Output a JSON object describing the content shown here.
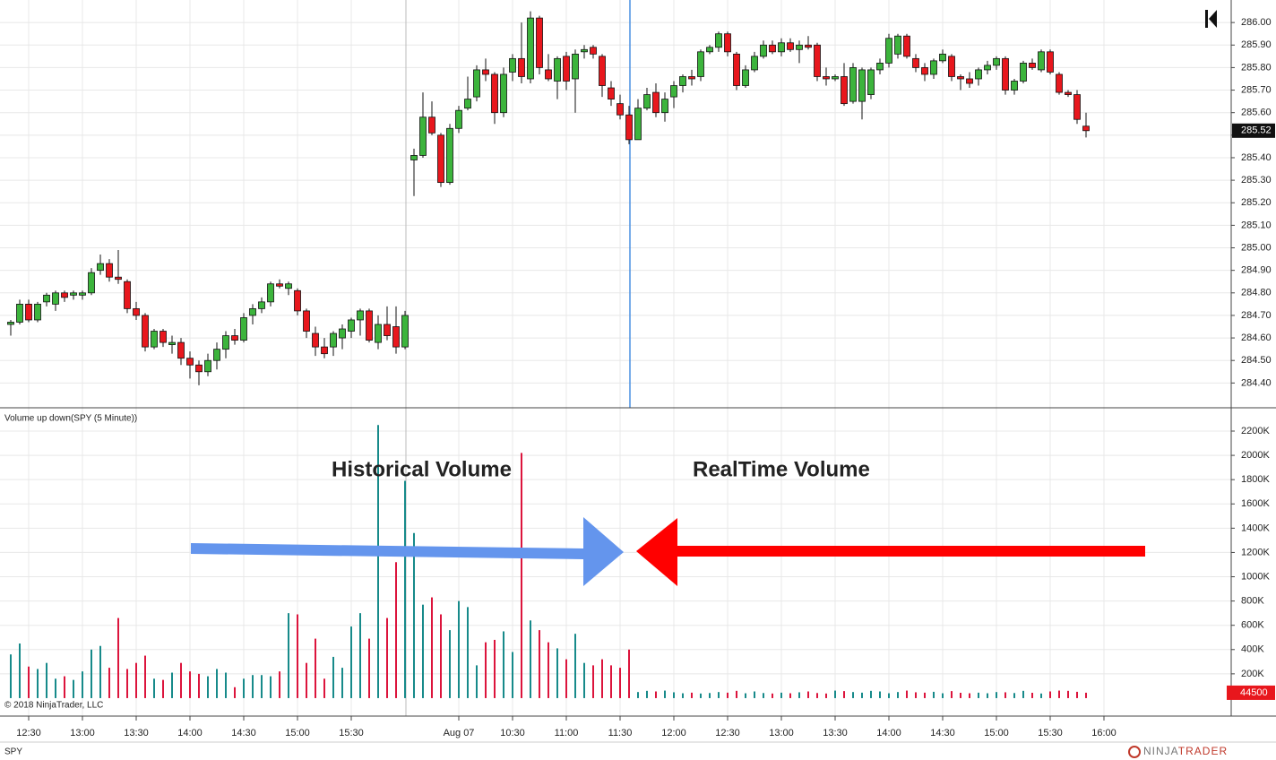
{
  "chart_data": [
    {
      "type": "candlestick",
      "up_color": "#3cb43c",
      "down_color": "#e8171d",
      "xlim": [
        -1.2,
        136.2
      ],
      "ylim": [
        284.29,
        286.1
      ],
      "yticks": [
        {
          "value": 284.4,
          "label": "284.40"
        },
        {
          "value": 284.5,
          "label": "284.50"
        },
        {
          "value": 284.6,
          "label": "284.60"
        },
        {
          "value": 284.7,
          "label": "284.70"
        },
        {
          "value": 284.8,
          "label": "284.80"
        },
        {
          "value": 284.9,
          "label": "284.90"
        },
        {
          "value": 285,
          "label": "285.00"
        },
        {
          "value": 285.1,
          "label": "285.10"
        },
        {
          "value": 285.2,
          "label": "285.20"
        },
        {
          "value": 285.3,
          "label": "285.30"
        },
        {
          "value": 285.4,
          "label": "285.40"
        },
        {
          "value": 285.5,
          "label": "285.50"
        },
        {
          "value": 285.6,
          "label": "285.60"
        },
        {
          "value": 285.7,
          "label": "285.70"
        },
        {
          "value": 285.8,
          "label": "285.80"
        },
        {
          "value": 285.9,
          "label": "285.90"
        },
        {
          "value": 286,
          "label": "286.00"
        }
      ],
      "last_price": 285.52,
      "grid": true,
      "ohlc": [
        [
          284.66,
          284.68,
          284.61,
          284.67
        ],
        [
          284.67,
          284.77,
          284.66,
          284.75
        ],
        [
          284.75,
          284.77,
          284.67,
          284.68
        ],
        [
          284.68,
          284.76,
          284.67,
          284.75
        ],
        [
          284.76,
          284.8,
          284.74,
          284.79
        ],
        [
          284.75,
          284.81,
          284.72,
          284.8
        ],
        [
          284.8,
          284.81,
          284.76,
          284.78
        ],
        [
          284.79,
          284.81,
          284.77,
          284.8
        ],
        [
          284.79,
          284.81,
          284.77,
          284.8
        ],
        [
          284.8,
          284.91,
          284.79,
          284.89
        ],
        [
          284.9,
          284.97,
          284.88,
          284.93
        ],
        [
          284.93,
          284.95,
          284.85,
          284.87
        ],
        [
          284.87,
          284.99,
          284.84,
          284.86
        ],
        [
          284.85,
          284.86,
          284.71,
          284.73
        ],
        [
          284.73,
          284.76,
          284.68,
          284.7
        ],
        [
          284.7,
          284.71,
          284.54,
          284.56
        ],
        [
          284.56,
          284.64,
          284.55,
          284.63
        ],
        [
          284.63,
          284.64,
          284.56,
          284.58
        ],
        [
          284.57,
          284.61,
          284.53,
          284.58
        ],
        [
          284.58,
          284.6,
          284.48,
          284.51
        ],
        [
          284.51,
          284.54,
          284.42,
          284.48
        ],
        [
          284.48,
          284.5,
          284.39,
          284.45
        ],
        [
          284.45,
          284.53,
          284.43,
          284.5
        ],
        [
          284.5,
          284.58,
          284.46,
          284.55
        ],
        [
          284.55,
          284.63,
          284.51,
          284.61
        ],
        [
          284.61,
          284.64,
          284.57,
          284.59
        ],
        [
          284.59,
          284.71,
          284.58,
          284.69
        ],
        [
          284.7,
          284.75,
          284.66,
          284.73
        ],
        [
          284.73,
          284.78,
          284.71,
          284.76
        ],
        [
          284.76,
          284.85,
          284.74,
          284.84
        ],
        [
          284.84,
          284.86,
          284.82,
          284.83
        ],
        [
          284.82,
          284.85,
          284.79,
          284.84
        ],
        [
          284.81,
          284.82,
          284.7,
          284.72
        ],
        [
          284.72,
          284.73,
          284.6,
          284.63
        ],
        [
          284.62,
          284.65,
          284.52,
          284.56
        ],
        [
          284.56,
          284.6,
          284.51,
          284.53
        ],
        [
          284.56,
          284.63,
          284.52,
          284.62
        ],
        [
          284.6,
          284.66,
          284.55,
          284.64
        ],
        [
          284.63,
          284.69,
          284.6,
          284.68
        ],
        [
          284.68,
          284.73,
          284.61,
          284.72
        ],
        [
          284.72,
          284.73,
          284.58,
          284.59
        ],
        [
          284.58,
          284.7,
          284.55,
          284.66
        ],
        [
          284.66,
          284.74,
          284.59,
          284.61
        ],
        [
          284.65,
          284.74,
          284.53,
          284.56
        ],
        [
          284.56,
          284.72,
          284.55,
          284.7
        ],
        [
          285.39,
          285.44,
          285.23,
          285.41
        ],
        [
          285.41,
          285.69,
          285.4,
          285.58
        ],
        [
          285.58,
          285.65,
          285.5,
          285.51
        ],
        [
          285.5,
          285.51,
          285.27,
          285.29
        ],
        [
          285.29,
          285.55,
          285.28,
          285.53
        ],
        [
          285.53,
          285.63,
          285.51,
          285.61
        ],
        [
          285.62,
          285.76,
          285.61,
          285.66
        ],
        [
          285.67,
          285.81,
          285.65,
          285.79
        ],
        [
          285.79,
          285.84,
          285.74,
          285.77
        ],
        [
          285.77,
          285.78,
          285.55,
          285.6
        ],
        [
          285.6,
          285.8,
          285.58,
          285.77
        ],
        [
          285.78,
          285.86,
          285.74,
          285.84
        ],
        [
          285.84,
          286.0,
          285.73,
          285.76
        ],
        [
          285.75,
          286.05,
          285.73,
          286.02
        ],
        [
          286.02,
          286.03,
          285.77,
          285.8
        ],
        [
          285.79,
          285.86,
          285.74,
          285.75
        ],
        [
          285.74,
          285.85,
          285.66,
          285.84
        ],
        [
          285.85,
          285.87,
          285.7,
          285.74
        ],
        [
          285.75,
          285.88,
          285.6,
          285.86
        ],
        [
          285.87,
          285.9,
          285.84,
          285.88
        ],
        [
          285.89,
          285.9,
          285.84,
          285.86
        ],
        [
          285.85,
          285.86,
          285.67,
          285.72
        ],
        [
          285.71,
          285.74,
          285.63,
          285.66
        ],
        [
          285.64,
          285.68,
          285.57,
          285.59
        ],
        [
          285.59,
          285.63,
          285.46,
          285.48
        ],
        [
          285.48,
          285.66,
          285.48,
          285.62
        ],
        [
          285.62,
          285.71,
          285.61,
          285.68
        ],
        [
          285.69,
          285.73,
          285.58,
          285.6
        ],
        [
          285.6,
          285.69,
          285.56,
          285.66
        ],
        [
          285.67,
          285.74,
          285.62,
          285.72
        ],
        [
          285.72,
          285.77,
          285.69,
          285.76
        ],
        [
          285.76,
          285.79,
          285.72,
          285.75
        ],
        [
          285.76,
          285.88,
          285.74,
          285.87
        ],
        [
          285.87,
          285.9,
          285.86,
          285.89
        ],
        [
          285.89,
          285.96,
          285.87,
          285.95
        ],
        [
          285.95,
          285.96,
          285.85,
          285.87
        ],
        [
          285.86,
          285.87,
          285.7,
          285.72
        ],
        [
          285.72,
          285.81,
          285.71,
          285.79
        ],
        [
          285.79,
          285.87,
          285.78,
          285.85
        ],
        [
          285.85,
          285.92,
          285.84,
          285.9
        ],
        [
          285.9,
          285.92,
          285.86,
          285.87
        ],
        [
          285.87,
          285.93,
          285.85,
          285.91
        ],
        [
          285.91,
          285.93,
          285.87,
          285.88
        ],
        [
          285.88,
          285.92,
          285.82,
          285.9
        ],
        [
          285.9,
          285.94,
          285.88,
          285.89
        ],
        [
          285.9,
          285.91,
          285.74,
          285.76
        ],
        [
          285.76,
          285.8,
          285.72,
          285.75
        ],
        [
          285.75,
          285.77,
          285.74,
          285.76
        ],
        [
          285.76,
          285.82,
          285.63,
          285.64
        ],
        [
          285.65,
          285.82,
          285.64,
          285.8
        ],
        [
          285.65,
          285.8,
          285.57,
          285.79
        ],
        [
          285.68,
          285.8,
          285.66,
          285.79
        ],
        [
          285.79,
          285.84,
          285.77,
          285.82
        ],
        [
          285.82,
          285.95,
          285.8,
          285.93
        ],
        [
          285.86,
          285.95,
          285.84,
          285.94
        ],
        [
          285.94,
          285.95,
          285.84,
          285.85
        ],
        [
          285.84,
          285.86,
          285.78,
          285.8
        ],
        [
          285.8,
          285.82,
          285.74,
          285.77
        ],
        [
          285.77,
          285.84,
          285.75,
          285.83
        ],
        [
          285.83,
          285.88,
          285.82,
          285.86
        ],
        [
          285.85,
          285.86,
          285.74,
          285.76
        ],
        [
          285.76,
          285.77,
          285.7,
          285.75
        ],
        [
          285.75,
          285.78,
          285.71,
          285.73
        ],
        [
          285.75,
          285.8,
          285.72,
          285.79
        ],
        [
          285.79,
          285.83,
          285.77,
          285.81
        ],
        [
          285.81,
          285.85,
          285.79,
          285.84
        ],
        [
          285.84,
          285.85,
          285.68,
          285.7
        ],
        [
          285.7,
          285.75,
          285.68,
          285.74
        ],
        [
          285.74,
          285.83,
          285.73,
          285.82
        ],
        [
          285.82,
          285.84,
          285.79,
          285.8
        ],
        [
          285.79,
          285.88,
          285.78,
          285.87
        ],
        [
          285.87,
          285.88,
          285.77,
          285.78
        ],
        [
          285.77,
          285.78,
          285.68,
          285.69
        ],
        [
          285.69,
          285.7,
          285.67,
          285.68
        ],
        [
          285.68,
          285.7,
          285.55,
          285.57
        ],
        [
          285.54,
          285.6,
          285.49,
          285.52
        ]
      ]
    },
    {
      "type": "bar",
      "title": "Volume up down(SPY (5 Minute))",
      "up_color": "#178a8a",
      "down_color": "#dc143c",
      "xlim": [
        -1.2,
        136.2
      ],
      "ylim": [
        -148000,
        2392000
      ],
      "xticks": [
        {
          "value": 2,
          "label": "12:30"
        },
        {
          "value": 8,
          "label": "13:00"
        },
        {
          "value": 14,
          "label": "13:30"
        },
        {
          "value": 20,
          "label": "14:00"
        },
        {
          "value": 26,
          "label": "14:30"
        },
        {
          "value": 32,
          "label": "15:00"
        },
        {
          "value": 38,
          "label": "15:30"
        },
        {
          "value": 50,
          "label": "Aug 07"
        },
        {
          "value": 56,
          "label": "10:30"
        },
        {
          "value": 62,
          "label": "11:00"
        },
        {
          "value": 68,
          "label": "11:30"
        },
        {
          "value": 74,
          "label": "12:00"
        },
        {
          "value": 80,
          "label": "12:30"
        },
        {
          "value": 86,
          "label": "13:00"
        },
        {
          "value": 92,
          "label": "13:30"
        },
        {
          "value": 98,
          "label": "14:00"
        },
        {
          "value": 104,
          "label": "14:30"
        },
        {
          "value": 110,
          "label": "15:00"
        },
        {
          "value": 116,
          "label": "15:30"
        },
        {
          "value": 122,
          "label": "16:00"
        }
      ],
      "yticks": [
        {
          "value": 200000,
          "label": "200K"
        },
        {
          "value": 400000,
          "label": "400K"
        },
        {
          "value": 600000,
          "label": "600K"
        },
        {
          "value": 800000,
          "label": "800K"
        },
        {
          "value": 1000000,
          "label": "1000K"
        },
        {
          "value": 1200000,
          "label": "1200K"
        },
        {
          "value": 1400000,
          "label": "1400K"
        },
        {
          "value": 1600000,
          "label": "1600K"
        },
        {
          "value": 1800000,
          "label": "1800K"
        },
        {
          "value": 2000000,
          "label": "2000K"
        },
        {
          "value": 2200000,
          "label": "2200K"
        }
      ],
      "last_volume": 44500,
      "grid": true,
      "annotations": [
        {
          "text": "Historical Volume",
          "color": "#6495ed"
        },
        {
          "text": "RealTime Volume",
          "color": "#ff0000"
        }
      ],
      "values": [
        360000,
        450000,
        260000,
        240000,
        290000,
        160000,
        180000,
        150000,
        220000,
        400000,
        430000,
        250000,
        660000,
        240000,
        290000,
        350000,
        160000,
        150000,
        210000,
        290000,
        220000,
        200000,
        180000,
        240000,
        210000,
        90000,
        160000,
        190000,
        190000,
        180000,
        220000,
        700000,
        690000,
        290000,
        490000,
        160000,
        340000,
        250000,
        590000,
        700000,
        490000,
        2250000,
        660000,
        1120000,
        1790000,
        1360000,
        770000,
        830000,
        690000,
        560000,
        800000,
        750000,
        270000,
        460000,
        480000,
        550000,
        380000,
        2020000,
        640000,
        560000,
        460000,
        410000,
        320000,
        530000,
        290000,
        270000,
        320000,
        270000,
        250000,
        400000,
        50000,
        60000,
        55000,
        62000,
        48000,
        40000,
        45000,
        38000,
        42000,
        50000,
        45000,
        60000,
        40000,
        55000,
        42000,
        38000,
        45000,
        40000,
        48000,
        55000,
        42000,
        38000,
        62000,
        58000,
        50000,
        45000,
        60000,
        55000,
        40000,
        50000,
        62000,
        48000,
        45000,
        52000,
        40000,
        58000,
        44000,
        40000,
        45000,
        40000,
        50000,
        48000,
        42000,
        60000,
        44000,
        38000,
        55000,
        62000,
        60000,
        52000,
        44500
      ]
    }
  ],
  "footer": {
    "copyright": "© 2018 NinjaTrader, LLC",
    "symbol": "SPY",
    "logo": [
      "NINJA",
      "TRADER"
    ]
  }
}
